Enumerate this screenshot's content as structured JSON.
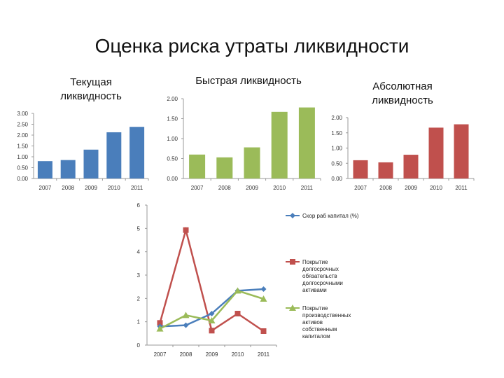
{
  "page_title": "Оценка риска утраты ликвидности",
  "chart_data": [
    {
      "id": "current",
      "type": "bar",
      "title": "Текущая ликвидность",
      "categories": [
        "2007",
        "2008",
        "2009",
        "2010",
        "2011"
      ],
      "values": [
        0.8,
        0.85,
        1.33,
        2.13,
        2.38
      ],
      "ylim": [
        0,
        3.0
      ],
      "yticks": [
        "0.00",
        "0.50",
        "1.00",
        "1.50",
        "2.00",
        "2.50",
        "3.00"
      ],
      "color": "#4a7ebb",
      "grid": false
    },
    {
      "id": "quick",
      "type": "bar",
      "title": "Быстрая ликвидность",
      "categories": [
        "2007",
        "2008",
        "2009",
        "2010",
        "2011"
      ],
      "values": [
        0.6,
        0.53,
        0.78,
        1.67,
        1.78
      ],
      "ylim": [
        0,
        2.0
      ],
      "yticks": [
        "0.00",
        "0.50",
        "1.00",
        "1.50",
        "2.00"
      ],
      "color": "#9bbb59",
      "grid": false
    },
    {
      "id": "absolute",
      "type": "bar",
      "title": "Абсолютная ликвидность",
      "categories": [
        "2007",
        "2008",
        "2009",
        "2010",
        "2011"
      ],
      "values": [
        0.6,
        0.53,
        0.78,
        1.67,
        1.78
      ],
      "ylim": [
        0,
        2.0
      ],
      "yticks": [
        "0.00",
        "0.50",
        "1.00",
        "1.50",
        "2.00"
      ],
      "color": "#c0504d",
      "grid": false
    },
    {
      "id": "ratios",
      "type": "line",
      "title": "",
      "categories": [
        "2007",
        "2008",
        "2009",
        "2010",
        "2011"
      ],
      "ylim": [
        0,
        6
      ],
      "yticks": [
        "0",
        "1",
        "2",
        "3",
        "4",
        "5",
        "6"
      ],
      "legend_position": "right",
      "series": [
        {
          "name": "Скор раб капитал (%)",
          "values": [
            0.8,
            0.85,
            1.35,
            2.33,
            2.4
          ],
          "color": "#4a7ebb",
          "marker": "diamond"
        },
        {
          "name": "Покрытие долгосрочных обязательств долгосрочными активами",
          "values": [
            0.95,
            4.93,
            0.62,
            1.35,
            0.6
          ],
          "color": "#c0504d",
          "marker": "square"
        },
        {
          "name": "Покрытие производственных активов собственным капиталом",
          "values": [
            0.7,
            1.28,
            1.05,
            2.33,
            1.98
          ],
          "color": "#9bbb59",
          "marker": "triangle"
        }
      ]
    }
  ]
}
